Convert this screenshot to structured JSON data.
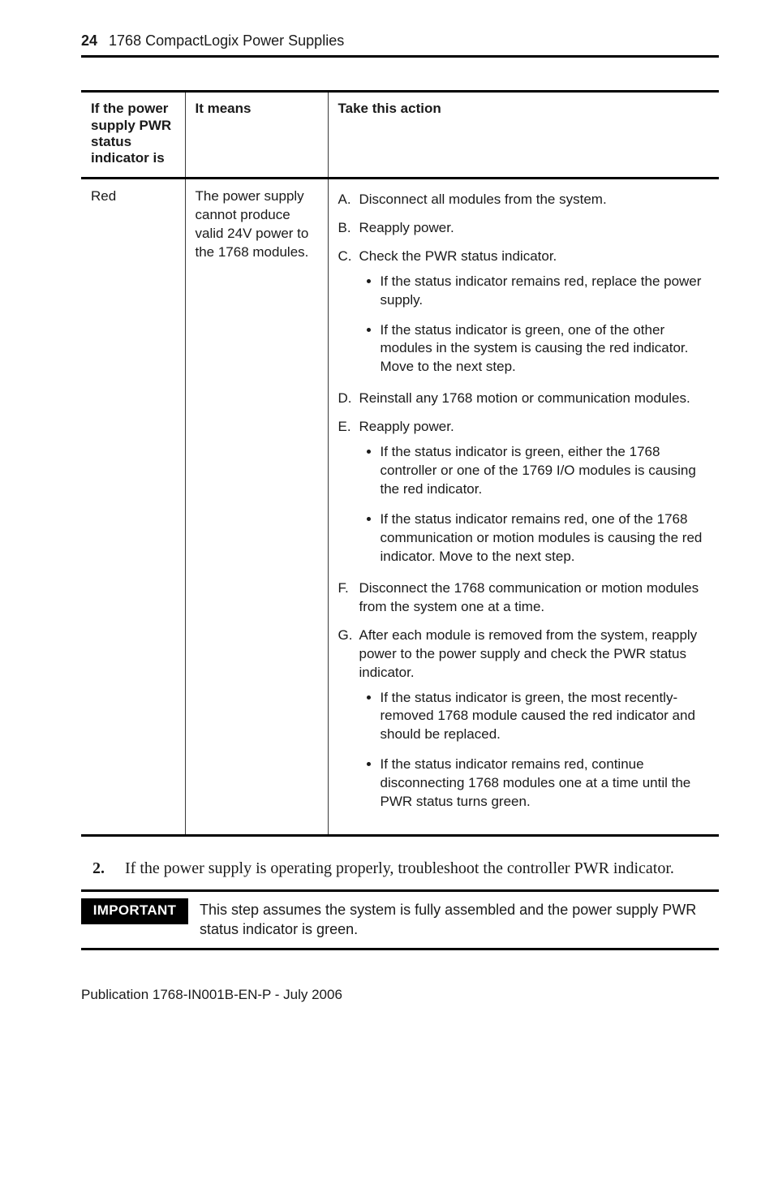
{
  "header": {
    "page_number": "24",
    "running_title": "1768 CompactLogix Power Supplies"
  },
  "table": {
    "columns": {
      "power": "If the power supply PWR status indicator is",
      "means": "It means",
      "action": "Take this action"
    },
    "row": {
      "power": "Red",
      "means": "The power supply cannot produce valid 24V power to the 1768 modules.",
      "actions": [
        {
          "letter": "A.",
          "text": "Disconnect all modules from the system.",
          "bullets": []
        },
        {
          "letter": "B.",
          "text": "Reapply power.",
          "bullets": []
        },
        {
          "letter": "C.",
          "text": "Check the PWR status indicator.",
          "bullets": [
            "If the status indicator remains red, replace the power supply.",
            "If the status indicator is green, one of the other modules in the system is causing the red indicator. Move to the next step."
          ]
        },
        {
          "letter": "D.",
          "text": "Reinstall any 1768 motion or communication modules.",
          "bullets": []
        },
        {
          "letter": "E.",
          "text": "Reapply power.",
          "bullets": [
            "If the status indicator is green, either the 1768 controller or one of the 1769 I/O modules is causing the red indicator.",
            "If the status indicator remains red, one of the 1768 communication or motion modules is causing the red indicator. Move to the next step."
          ]
        },
        {
          "letter": "F.",
          "text": "Disconnect the 1768 communication or motion modules from the system one at a time.",
          "bullets": []
        },
        {
          "letter": "G.",
          "text": "After each module is removed from the system, reapply power to the power supply and check the PWR status indicator.",
          "bullets": [
            "If the status indicator is green, the most recently-removed 1768 module caused the red indicator and should be replaced.",
            "If the status indicator remains red, continue disconnecting 1768 modules one at a time until the PWR status turns green."
          ]
        }
      ]
    }
  },
  "step": {
    "number": "2.",
    "text": "If the power supply is operating properly, troubleshoot the controller PWR indicator."
  },
  "important": {
    "label": "IMPORTANT",
    "text": "This step assumes the system is fully assembled and the power supply PWR status indicator is green."
  },
  "publication_line": "Publication 1768-IN001B-EN-P - July 2006"
}
